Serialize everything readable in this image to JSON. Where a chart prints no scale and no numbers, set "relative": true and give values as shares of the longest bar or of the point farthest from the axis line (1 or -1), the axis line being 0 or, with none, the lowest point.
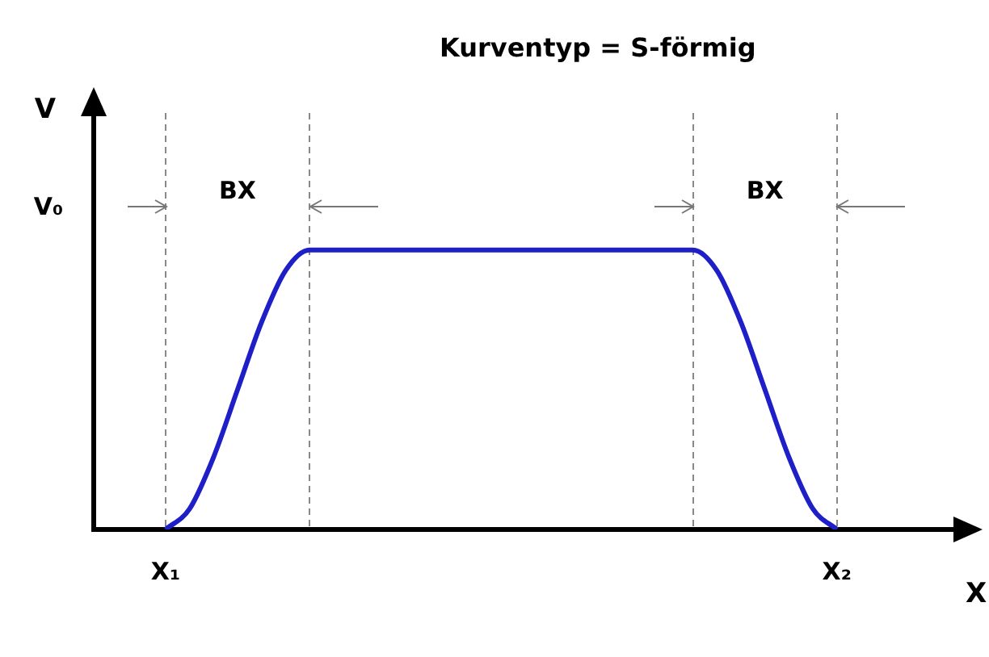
{
  "chart_data": {
    "type": "line",
    "title": "Kurventyp = S-förmig",
    "xlabel": "X",
    "ylabel": "V",
    "relative": true,
    "grid": "x",
    "marker": "none",
    "color": "#1f1fc8",
    "categories": [
      null,
      null,
      null,
      null,
      null,
      null,
      null,
      null,
      null,
      null,
      null,
      null,
      null,
      null,
      null,
      null,
      null,
      null,
      null,
      null,
      null,
      null,
      null,
      null,
      null,
      null,
      null,
      null,
      null,
      null,
      null,
      null,
      null,
      null,
      null,
      null,
      null
    ],
    "values": [
      null,
      null,
      null,
      0,
      0.074,
      0.259,
      0.5,
      0.741,
      0.926,
      1,
      1,
      1,
      1,
      1,
      1,
      1,
      1,
      1,
      1,
      1,
      1,
      1,
      1,
      1,
      1,
      1,
      0.926,
      0.741,
      0.5,
      0.259,
      0.074,
      0,
      null,
      null,
      null,
      null,
      null
    ],
    "annotations": [
      "V₀",
      "BX",
      "BX",
      "X₁",
      "X₂"
    ]
  }
}
